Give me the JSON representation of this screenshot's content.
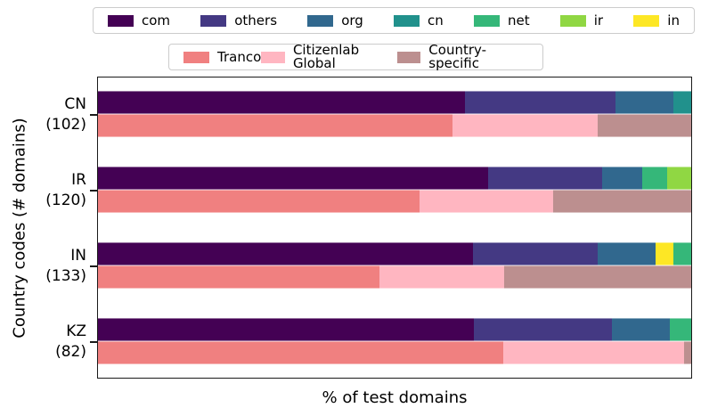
{
  "chart_data": {
    "type": "bar",
    "orientation": "horizontal",
    "stacked": true,
    "title": "",
    "xlabel": "% of test domains",
    "ylabel": "Country codes (# domains)",
    "xlim": [
      0,
      100
    ],
    "grid": false,
    "legend_position": "top",
    "colors": {
      "com": "#440154",
      "others": "#443983",
      "org": "#31688e",
      "cn": "#21918c",
      "net": "#35b779",
      "ir": "#90d743",
      "in": "#fde725",
      "tranco": "#f08080",
      "citizenlab_global": "#ffb6c1",
      "country_specific": "#bc8f8f"
    },
    "legends": {
      "tld": {
        "items": [
          {
            "key": "com",
            "label": "com"
          },
          {
            "key": "others",
            "label": "others"
          },
          {
            "key": "org",
            "label": "org"
          },
          {
            "key": "cn",
            "label": "cn"
          },
          {
            "key": "net",
            "label": "net"
          },
          {
            "key": "ir",
            "label": "ir"
          },
          {
            "key": "in",
            "label": "in"
          }
        ]
      },
      "source": {
        "items": [
          {
            "key": "tranco",
            "label": "Tranco"
          },
          {
            "key": "citizenlab_global",
            "label": "Citizenlab Global"
          },
          {
            "key": "country_specific",
            "label": "Country-specific"
          }
        ]
      }
    },
    "groups": [
      {
        "country": "CN",
        "num_domains": 102,
        "tick_label_lines": [
          "CN",
          "(102)"
        ],
        "tld_segments": [
          {
            "key": "com",
            "pct": 61.8
          },
          {
            "key": "others",
            "pct": 25.4
          },
          {
            "key": "org",
            "pct": 9.8
          },
          {
            "key": "cn",
            "pct": 3.0
          }
        ],
        "source_segments": [
          {
            "key": "tranco",
            "pct": 59.8
          },
          {
            "key": "citizenlab_global",
            "pct": 24.5
          },
          {
            "key": "country_specific",
            "pct": 15.7
          }
        ]
      },
      {
        "country": "IR",
        "num_domains": 120,
        "tick_label_lines": [
          "IR",
          "(120)"
        ],
        "tld_segments": [
          {
            "key": "com",
            "pct": 65.8
          },
          {
            "key": "others",
            "pct": 19.2
          },
          {
            "key": "org",
            "pct": 6.7
          },
          {
            "key": "net",
            "pct": 4.2
          },
          {
            "key": "ir",
            "pct": 4.1
          }
        ],
        "source_segments": [
          {
            "key": "tranco",
            "pct": 54.2
          },
          {
            "key": "citizenlab_global",
            "pct": 22.5
          },
          {
            "key": "country_specific",
            "pct": 23.3
          }
        ]
      },
      {
        "country": "IN",
        "num_domains": 133,
        "tick_label_lines": [
          "IN",
          "(133)"
        ],
        "tld_segments": [
          {
            "key": "com",
            "pct": 63.2
          },
          {
            "key": "others",
            "pct": 21.0
          },
          {
            "key": "org",
            "pct": 9.8
          },
          {
            "key": "in",
            "pct": 3.0
          },
          {
            "key": "net",
            "pct": 3.0
          }
        ],
        "source_segments": [
          {
            "key": "tranco",
            "pct": 47.4
          },
          {
            "key": "citizenlab_global",
            "pct": 21.0
          },
          {
            "key": "country_specific",
            "pct": 31.6
          }
        ]
      },
      {
        "country": "KZ",
        "num_domains": 82,
        "tick_label_lines": [
          "KZ",
          "(82)"
        ],
        "tld_segments": [
          {
            "key": "com",
            "pct": 63.4
          },
          {
            "key": "others",
            "pct": 23.2
          },
          {
            "key": "org",
            "pct": 9.8
          },
          {
            "key": "net",
            "pct": 3.6
          }
        ],
        "source_segments": [
          {
            "key": "tranco",
            "pct": 68.3
          },
          {
            "key": "citizenlab_global",
            "pct": 30.5
          },
          {
            "key": "country_specific",
            "pct": 1.2
          }
        ]
      }
    ]
  }
}
